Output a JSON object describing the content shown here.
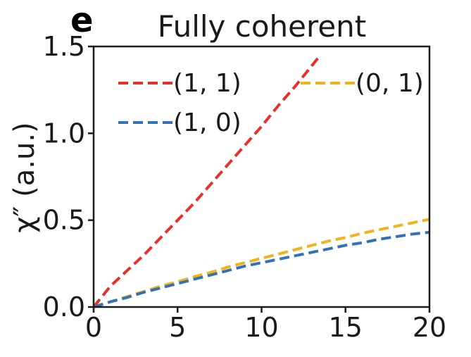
{
  "panel_letter": "e",
  "chart_data": {
    "type": "line",
    "title": "Fully coherent",
    "xlabel": "",
    "ylabel": "χ″ (a.u.)",
    "xlim": [
      0,
      20
    ],
    "ylim": [
      0,
      1.5
    ],
    "x_ticks": [
      0,
      5,
      10,
      15,
      20
    ],
    "x_tick_labels": [
      "0",
      "5",
      "10",
      "15",
      "20"
    ],
    "y_ticks": [
      0,
      0.5,
      1.0,
      1.5
    ],
    "y_tick_labels": [
      "0.0",
      "0.5",
      "1.0",
      "1.5"
    ],
    "grid": false,
    "legend_placement": "top",
    "series": [
      {
        "name": "(1, 1)",
        "color": "#e8302a",
        "style": "dashed",
        "x": [
          0,
          0.5,
          1,
          2,
          3,
          4,
          5,
          6,
          7,
          8,
          9,
          10,
          11,
          12,
          13,
          13.5
        ],
        "y": [
          0,
          0.06,
          0.12,
          0.21,
          0.3,
          0.4,
          0.5,
          0.6,
          0.71,
          0.82,
          0.93,
          1.04,
          1.16,
          1.27,
          1.39,
          1.45
        ]
      },
      {
        "name": "(0, 1)",
        "color": "#f2b21c",
        "style": "dashed",
        "x": [
          0,
          1,
          2,
          3,
          4,
          5,
          6,
          7,
          8,
          9,
          10,
          11,
          12,
          13,
          14,
          15,
          16,
          17,
          18,
          19,
          20
        ],
        "y": [
          0,
          0.03,
          0.06,
          0.09,
          0.12,
          0.145,
          0.175,
          0.2,
          0.23,
          0.255,
          0.28,
          0.305,
          0.33,
          0.355,
          0.38,
          0.4,
          0.425,
          0.445,
          0.465,
          0.485,
          0.505
        ]
      },
      {
        "name": "(1, 0)",
        "color": "#3272b5",
        "style": "dashed",
        "x": [
          0,
          1,
          2,
          3,
          4,
          5,
          6,
          7,
          8,
          9,
          10,
          11,
          12,
          13,
          14,
          15,
          16,
          17,
          18,
          19,
          20
        ],
        "y": [
          0,
          0.03,
          0.055,
          0.085,
          0.11,
          0.135,
          0.16,
          0.185,
          0.21,
          0.235,
          0.255,
          0.275,
          0.295,
          0.315,
          0.335,
          0.355,
          0.37,
          0.39,
          0.405,
          0.42,
          0.43
        ]
      }
    ]
  }
}
